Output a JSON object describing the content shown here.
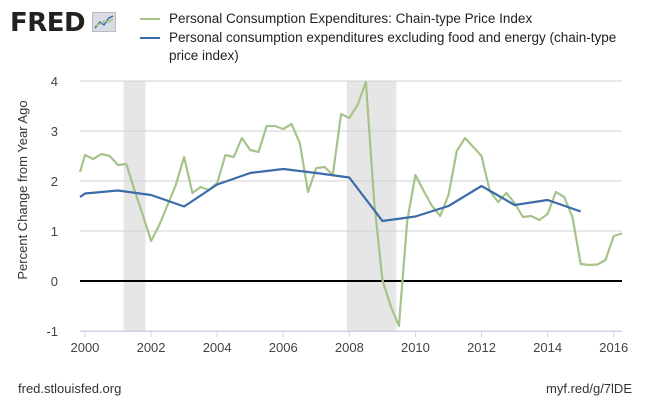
{
  "logo": "FRED",
  "legend": [
    {
      "label": "Personal Consumption Expenditures: Chain-type Price Index",
      "color": "#a6c48a"
    },
    {
      "label": "Personal consumption expenditures excluding food and energy (chain-type price index)",
      "color": "#3b6ca8"
    }
  ],
  "footer": {
    "source": "fred.stlouisfed.org",
    "short_url": "myf.red/g/7lDE"
  },
  "chart_data": {
    "type": "line",
    "ylabel": "Percent Change from Year Ago",
    "xlim": [
      1999.85,
      2016.25
    ],
    "ylim": [
      -1,
      4
    ],
    "xticks": [
      2000,
      2002,
      2004,
      2006,
      2008,
      2010,
      2012,
      2014,
      2016
    ],
    "yticks": [
      -1,
      0,
      1,
      2,
      3,
      4
    ],
    "recessions": [
      [
        2001.17,
        2001.83
      ],
      [
        2007.92,
        2009.42
      ]
    ],
    "series": [
      {
        "name": "Personal Consumption Expenditures: Chain-type Price Index",
        "color": "#a6c48a",
        "x": [
          1999.85,
          2000,
          2000.25,
          2000.5,
          2000.75,
          2001,
          2001.25,
          2001.5,
          2001.75,
          2002,
          2002.25,
          2002.5,
          2002.75,
          2003,
          2003.25,
          2003.5,
          2003.75,
          2004,
          2004.25,
          2004.5,
          2004.75,
          2005,
          2005.25,
          2005.5,
          2005.75,
          2006,
          2006.25,
          2006.5,
          2006.75,
          2007,
          2007.25,
          2007.5,
          2007.75,
          2008,
          2008.25,
          2008.5,
          2008.75,
          2009,
          2009.25,
          2009.5,
          2009.75,
          2010,
          2010.25,
          2010.5,
          2010.75,
          2011,
          2011.25,
          2011.5,
          2011.75,
          2012,
          2012.25,
          2012.5,
          2012.75,
          2013,
          2013.25,
          2013.5,
          2013.75,
          2014,
          2014.25,
          2014.5,
          2014.75,
          2015,
          2015.25,
          2015.5,
          2015.75,
          2016,
          2016.25
        ],
        "values": [
          2.18,
          2.52,
          2.44,
          2.54,
          2.5,
          2.32,
          2.34,
          1.82,
          1.32,
          0.8,
          1.12,
          1.52,
          1.92,
          2.48,
          1.76,
          1.88,
          1.82,
          1.96,
          2.52,
          2.48,
          2.86,
          2.62,
          2.58,
          3.1,
          3.1,
          3.04,
          3.14,
          2.76,
          1.78,
          2.26,
          2.28,
          2.12,
          3.34,
          3.26,
          3.52,
          3.98,
          1.6,
          0.02,
          -0.5,
          -0.9,
          1.2,
          2.12,
          1.8,
          1.5,
          1.3,
          1.72,
          2.6,
          2.86,
          2.68,
          2.5,
          1.8,
          1.58,
          1.76,
          1.56,
          1.28,
          1.3,
          1.22,
          1.34,
          1.78,
          1.68,
          1.28,
          0.34,
          0.32,
          0.33,
          0.42,
          0.9,
          0.95
        ]
      },
      {
        "name": "Personal consumption expenditures excluding food and energy (chain-type price index)",
        "color": "#3b6ca8",
        "x": [
          1999.85,
          2000,
          2001,
          2002,
          2003,
          2004,
          2005,
          2006,
          2007,
          2008,
          2009,
          2010,
          2011,
          2012,
          2013,
          2014,
          2015
        ],
        "values": [
          1.68,
          1.75,
          1.81,
          1.72,
          1.49,
          1.93,
          2.16,
          2.24,
          2.16,
          2.07,
          1.2,
          1.29,
          1.5,
          1.9,
          1.52,
          1.62,
          1.39
        ]
      }
    ]
  }
}
